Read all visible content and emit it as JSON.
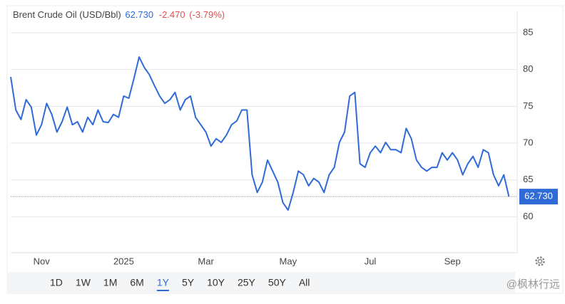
{
  "chart_data": {
    "type": "line",
    "title": "Brent Crude Oil (USD/Bbl)",
    "last_price": "62.730",
    "change": "-2.470",
    "change_percent": "(-3.79%)",
    "categories": [
      null,
      null,
      null,
      null,
      null,
      null,
      "Nov",
      null,
      null,
      null,
      null,
      null,
      null,
      null,
      null,
      null,
      null,
      null,
      null,
      null,
      null,
      null,
      "2025",
      null,
      null,
      null,
      null,
      null,
      null,
      null,
      null,
      null,
      null,
      null,
      null,
      null,
      null,
      null,
      "Mar",
      null,
      null,
      null,
      null,
      null,
      null,
      null,
      null,
      null,
      null,
      null,
      null,
      null,
      null,
      null,
      "May",
      null,
      null,
      null,
      null,
      null,
      null,
      null,
      null,
      null,
      null,
      null,
      null,
      null,
      null,
      null,
      "Jul",
      null,
      null,
      null,
      null,
      null,
      null,
      null,
      null,
      null,
      null,
      null,
      null,
      null,
      null,
      null,
      "Sep",
      null,
      null,
      null,
      null,
      null,
      null,
      null,
      null,
      null,
      null,
      null
    ],
    "values": [
      79.0,
      74.5,
      73.2,
      75.9,
      74.9,
      71.1,
      72.5,
      75.4,
      73.9,
      71.5,
      72.9,
      74.9,
      72.5,
      72.9,
      71.5,
      73.5,
      72.5,
      74.5,
      72.9,
      72.8,
      73.9,
      73.5,
      76.4,
      76.1,
      78.8,
      81.7,
      80.3,
      79.3,
      77.8,
      76.4,
      75.4,
      75.9,
      76.9,
      74.5,
      75.9,
      76.4,
      73.5,
      72.5,
      71.5,
      69.6,
      70.6,
      70.1,
      71.1,
      72.5,
      73.0,
      74.5,
      74.5,
      65.7,
      63.3,
      64.7,
      67.7,
      66.2,
      64.7,
      61.9,
      60.9,
      63.3,
      66.2,
      65.7,
      64.2,
      65.2,
      64.7,
      63.3,
      65.7,
      66.7,
      70.1,
      71.5,
      76.4,
      76.9,
      67.2,
      66.7,
      68.7,
      69.6,
      68.7,
      70.1,
      69.1,
      69.1,
      68.7,
      72.0,
      70.6,
      67.7,
      66.7,
      66.2,
      66.7,
      66.7,
      68.7,
      67.7,
      68.7,
      67.7,
      65.7,
      67.2,
      68.2,
      66.7,
      69.1,
      68.7,
      65.7,
      64.2,
      65.7,
      62.73
    ],
    "color": "#2f6bd6",
    "ylim": [
      55.1,
      88.0
    ],
    "yticks": [
      60,
      65,
      70,
      75,
      80,
      85
    ],
    "grid": true,
    "range_buttons": [
      "1D",
      "1W",
      "1M",
      "6M",
      "1Y",
      "5Y",
      "10Y",
      "25Y",
      "50Y",
      "All"
    ],
    "active_range": "1Y",
    "watermark": "@枫林行远"
  }
}
